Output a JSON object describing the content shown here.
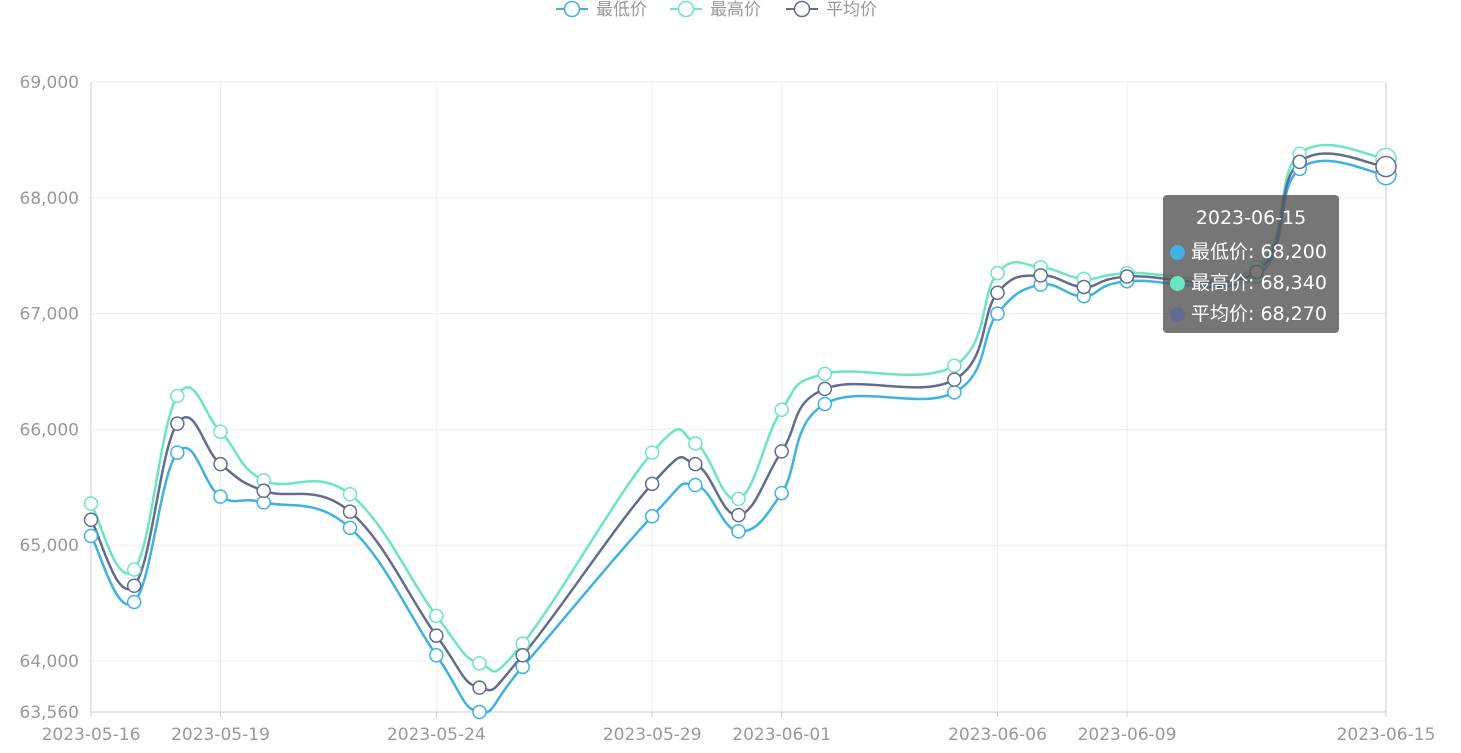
{
  "colors": {
    "low": "#3fb1e3",
    "high": "#6be6c1",
    "avg": "#626c91",
    "axis_text": "#999999",
    "grid": "#eeeeee"
  },
  "chart_data": {
    "type": "line",
    "smooth": true,
    "x": [
      "2023-05-16",
      "2023-05-17",
      "2023-05-18",
      "2023-05-19",
      "2023-05-20",
      "2023-05-22",
      "2023-05-24",
      "2023-05-25",
      "2023-05-26",
      "2023-05-29",
      "2023-05-30",
      "2023-05-31",
      "2023-06-01",
      "2023-06-02",
      "2023-06-05",
      "2023-06-06",
      "2023-06-07",
      "2023-06-08",
      "2023-06-09",
      "2023-06-12",
      "2023-06-13",
      "2023-06-15"
    ],
    "x_tick_labels": [
      "2023-05-16",
      "2023-05-19",
      "2023-05-24",
      "2023-05-29",
      "2023-06-01",
      "2023-06-06",
      "2023-06-09",
      "2023-06-15"
    ],
    "y_ticks": [
      "63,560",
      "64,000",
      "65,000",
      "66,000",
      "67,000",
      "68,000",
      "69,000"
    ],
    "ylim": [
      63560,
      69000
    ],
    "series": [
      {
        "name": "最低价",
        "values": [
          65080,
          64510,
          65800,
          65420,
          65370,
          65150,
          64050,
          63560,
          63950,
          65250,
          65520,
          65120,
          65450,
          66220,
          66320,
          67000,
          67250,
          67150,
          67280,
          67320,
          68250,
          68200
        ]
      },
      {
        "name": "最高价",
        "values": [
          65360,
          64790,
          66290,
          65980,
          65560,
          65440,
          64390,
          63980,
          64150,
          65800,
          65880,
          65400,
          66170,
          66480,
          66550,
          67350,
          67400,
          67300,
          67350,
          67400,
          68380,
          68340
        ]
      },
      {
        "name": "平均价",
        "values": [
          65220,
          64650,
          66050,
          65700,
          65470,
          65290,
          64220,
          63770,
          64050,
          65530,
          65700,
          65260,
          65810,
          66350,
          66430,
          67180,
          67330,
          67230,
          67320,
          67360,
          68310,
          68270
        ]
      }
    ],
    "legend_position": "top-center",
    "grid": true
  },
  "tooltip": {
    "date": "2023-06-15",
    "rows": [
      {
        "label": "最低价: 68,200",
        "color": "#3fb1e3"
      },
      {
        "label": "最高价: 68,340",
        "color": "#6be6c1"
      },
      {
        "label": "平均价: 68,270",
        "color": "#626c91"
      }
    ]
  }
}
